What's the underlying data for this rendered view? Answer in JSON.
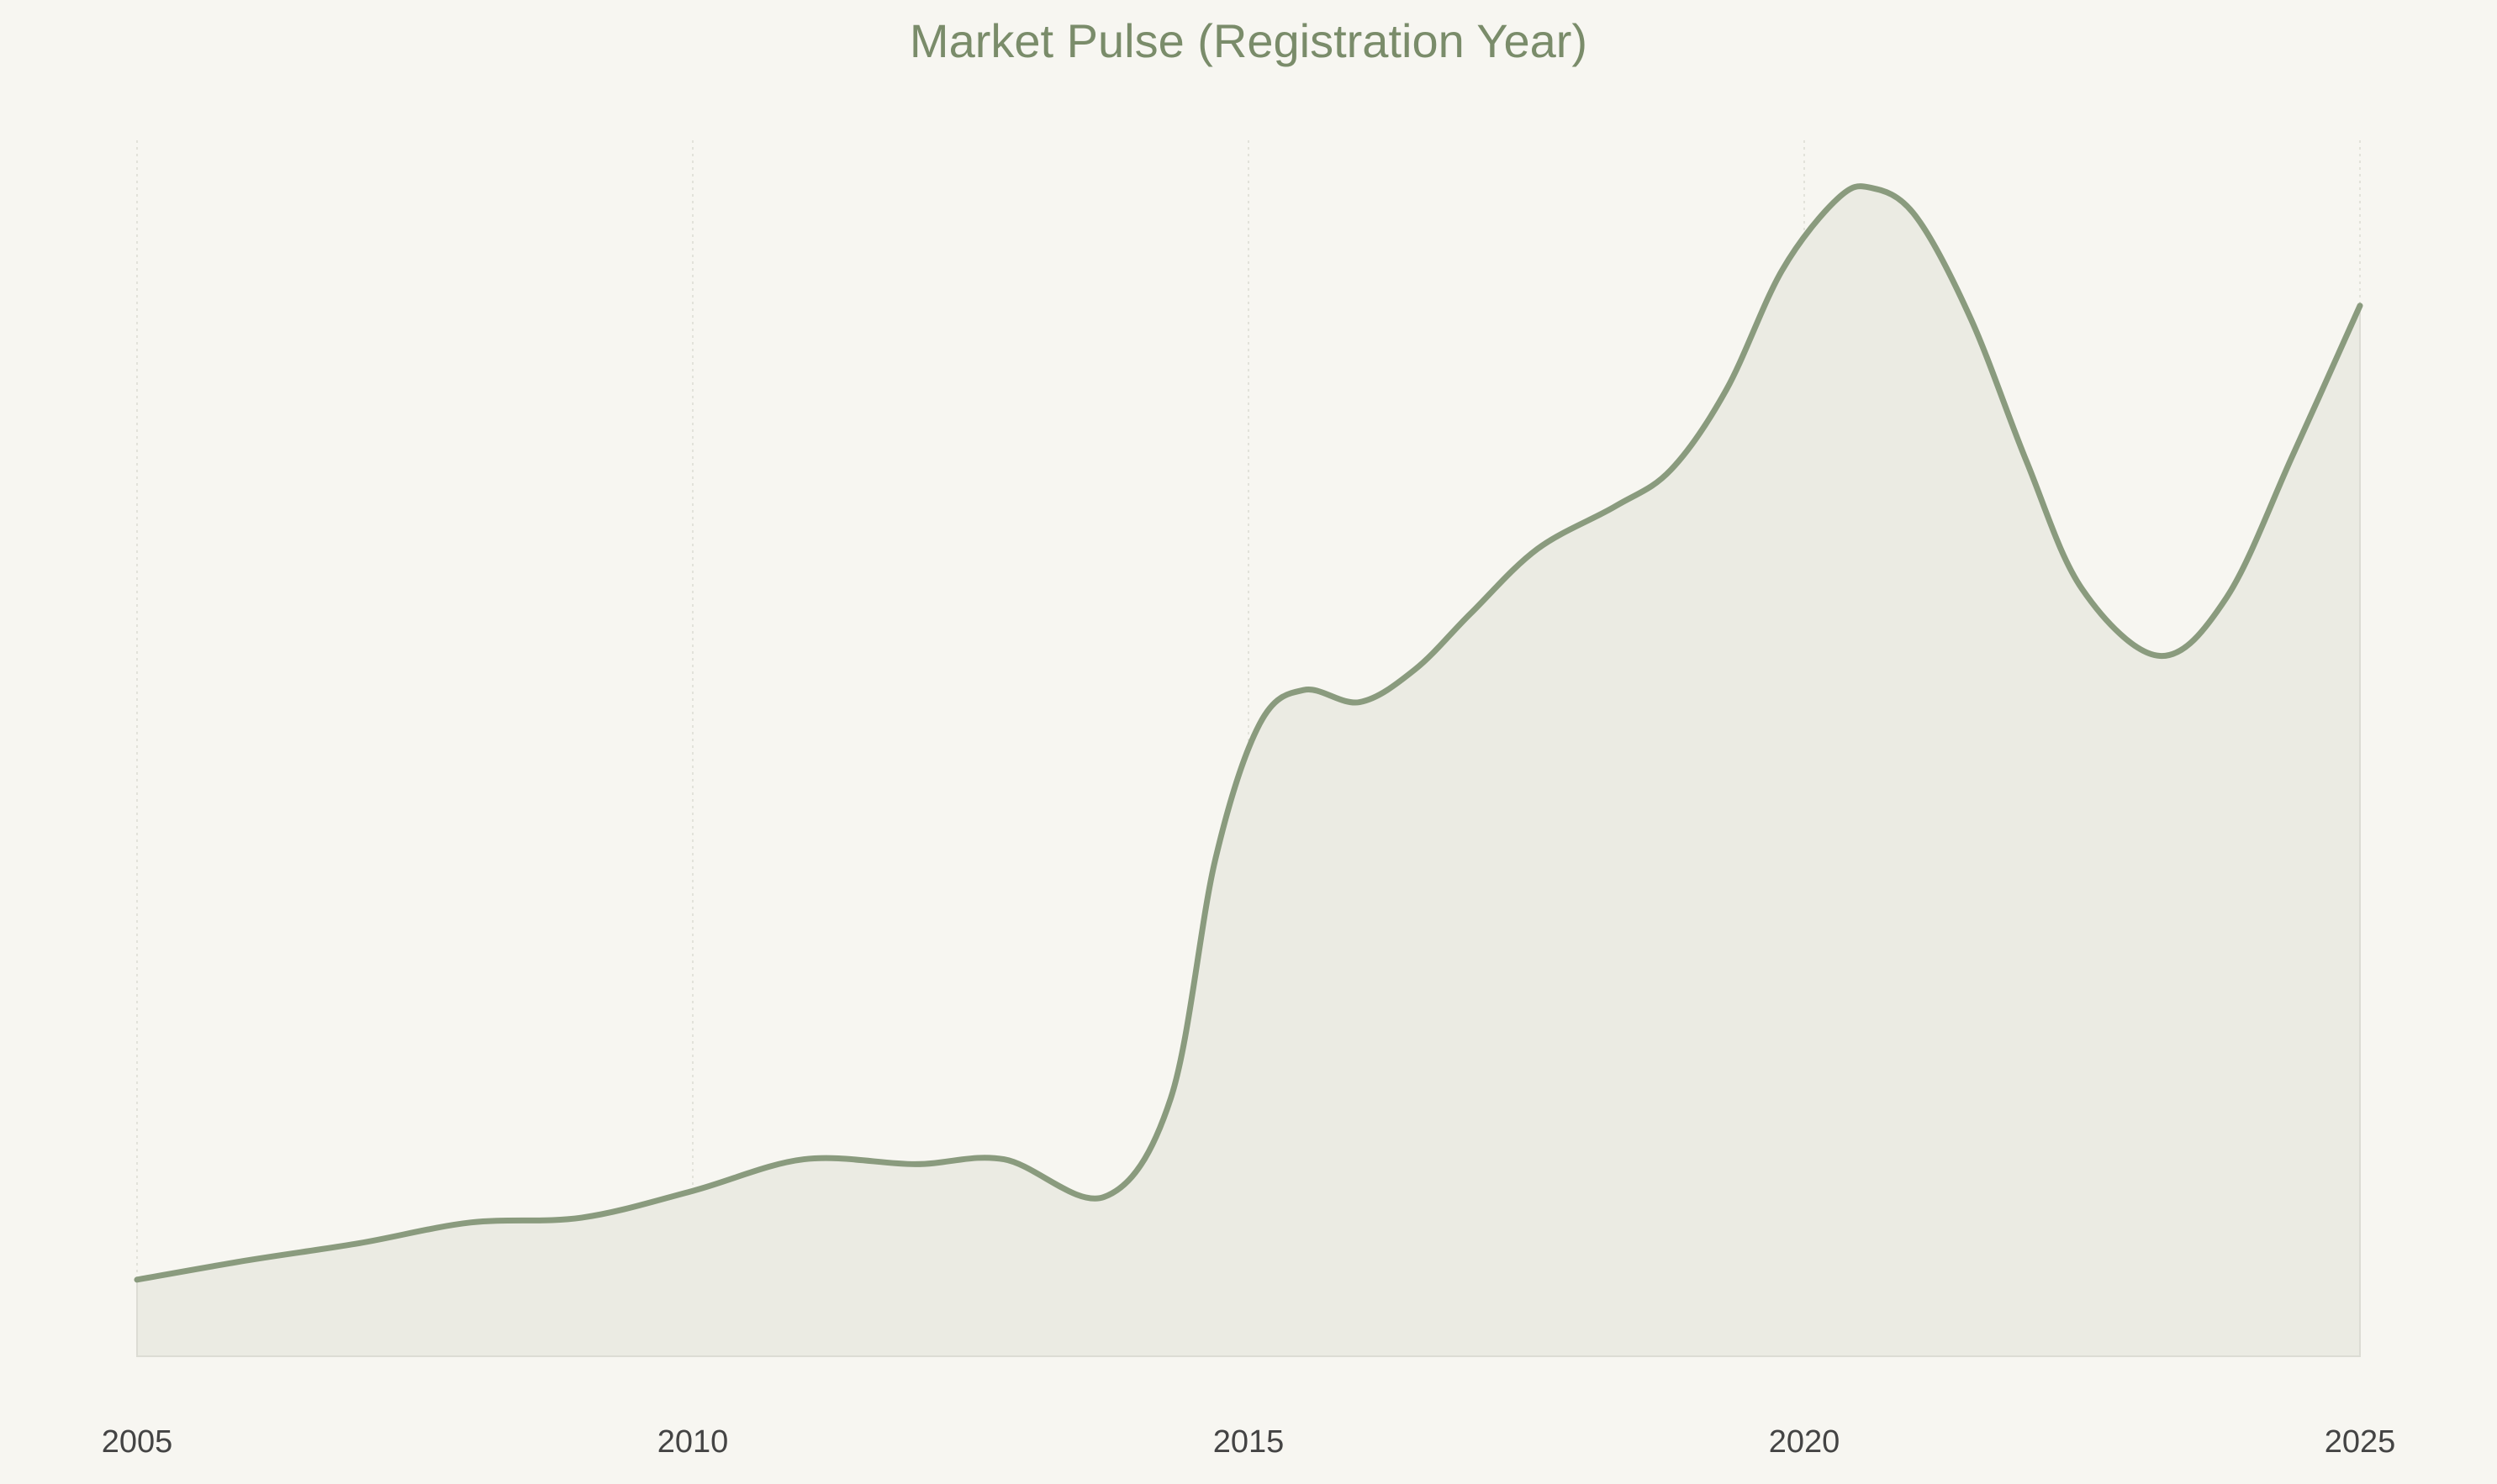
{
  "chart_data": {
    "type": "area",
    "title": "Market Pulse (Registration Year)",
    "x": [
      2005,
      2006,
      2007,
      2008,
      2009,
      2010,
      2011,
      2012,
      2012.8,
      2013.7,
      2014.3,
      2014.7,
      2015.1,
      2015.5,
      2016,
      2016.5,
      2017,
      2017.6,
      2018.3,
      2018.8,
      2019.3,
      2019.8,
      2020.3,
      2020.6,
      2021,
      2021.5,
      2022,
      2022.5,
      2023.2,
      2023.8,
      2024.4,
      2025
    ],
    "series": [
      {
        "color": "#8a9b7e",
        "fill": "#ebebe3",
        "values": [
          6.3,
          7.9,
          9.3,
          11.0,
          11.4,
          13.6,
          16.2,
          15.8,
          16.2,
          13.1,
          21.2,
          40.8,
          52.0,
          54.8,
          53.8,
          56.5,
          61.1,
          66.4,
          69.9,
          72.9,
          79.5,
          89.3,
          95.2,
          96.1,
          93.8,
          85.3,
          73.6,
          63.1,
          57.6,
          62.4,
          74.2,
          86.4
        ]
      }
    ],
    "xlim": [
      2005,
      2025
    ],
    "xticks": [
      2005,
      2010,
      2015,
      2020,
      2025
    ],
    "ylim": [
      0,
      100
    ],
    "grid": true
  }
}
